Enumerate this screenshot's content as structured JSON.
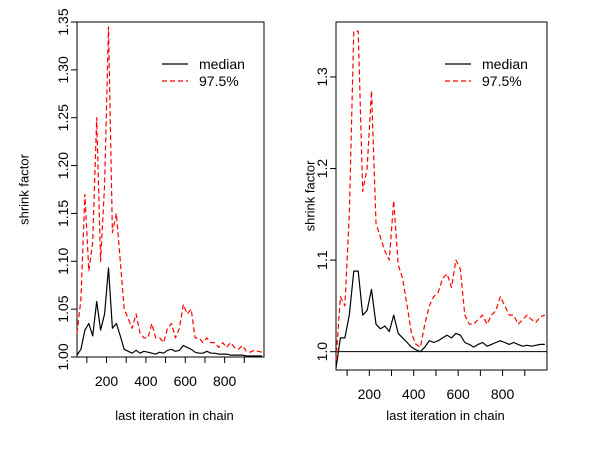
{
  "chart_data": [
    {
      "type": "line",
      "title": "",
      "xlabel": "last iteration in chain",
      "ylabel": "shrink factor",
      "xlim": [
        50,
        1000
      ],
      "ylim": [
        1.0,
        1.35
      ],
      "xticks": [
        "200",
        "400",
        "600",
        "800"
      ],
      "yticks": [
        "1.00",
        "1.05",
        "1.10",
        "1.15",
        "1.20",
        "1.25",
        "1.30",
        "1.35"
      ],
      "reference_line": 1.0,
      "legend": {
        "position": "top-right",
        "entries": [
          "median",
          "97.5%"
        ]
      },
      "colors": {
        "median": "#000000",
        "upper": "#ff0000"
      },
      "series": [
        {
          "name": "median",
          "x": [
            50,
            70,
            90,
            110,
            130,
            150,
            170,
            190,
            210,
            230,
            250,
            270,
            290,
            310,
            330,
            350,
            370,
            390,
            410,
            430,
            450,
            470,
            490,
            510,
            530,
            550,
            570,
            590,
            610,
            630,
            650,
            670,
            690,
            710,
            730,
            750,
            770,
            790,
            810,
            830,
            850,
            870,
            890,
            910,
            930,
            950,
            970,
            990
          ],
          "values": [
            1.002,
            1.008,
            1.028,
            1.035,
            1.022,
            1.058,
            1.028,
            1.045,
            1.093,
            1.03,
            1.035,
            1.022,
            1.008,
            1.006,
            1.004,
            1.007,
            1.004,
            1.006,
            1.005,
            1.004,
            1.003,
            1.005,
            1.004,
            1.007,
            1.008,
            1.006,
            1.007,
            1.012,
            1.01,
            1.008,
            1.005,
            1.004,
            1.004,
            1.006,
            1.004,
            1.004,
            1.003,
            1.003,
            1.003,
            1.002,
            1.002,
            1.002,
            1.002,
            1.001,
            1.001,
            1.001,
            1.001,
            1.001
          ]
        },
        {
          "name": "97.5%",
          "x": [
            50,
            70,
            90,
            110,
            130,
            150,
            170,
            190,
            210,
            230,
            250,
            270,
            290,
            310,
            330,
            350,
            370,
            390,
            410,
            430,
            450,
            470,
            490,
            510,
            530,
            550,
            570,
            590,
            610,
            630,
            650,
            670,
            690,
            710,
            730,
            750,
            770,
            790,
            810,
            830,
            850,
            870,
            890,
            910,
            930,
            950,
            970,
            990
          ],
          "values": [
            1.025,
            1.06,
            1.17,
            1.09,
            1.12,
            1.25,
            1.1,
            1.18,
            1.345,
            1.13,
            1.15,
            1.1,
            1.05,
            1.04,
            1.03,
            1.045,
            1.025,
            1.02,
            1.02,
            1.035,
            1.02,
            1.02,
            1.015,
            1.03,
            1.035,
            1.02,
            1.03,
            1.055,
            1.045,
            1.05,
            1.02,
            1.02,
            1.015,
            1.02,
            1.015,
            1.015,
            1.01,
            1.015,
            1.01,
            1.015,
            1.01,
            1.008,
            1.012,
            1.006,
            1.005,
            1.007,
            1.006,
            1.005
          ]
        }
      ]
    },
    {
      "type": "line",
      "title": "",
      "xlabel": "last iteration in chain",
      "ylabel": "shrink factor",
      "xlim": [
        50,
        1000
      ],
      "ylim": [
        0.98,
        1.36
      ],
      "xticks": [
        "200",
        "400",
        "600",
        "800"
      ],
      "yticks": [
        "1.0",
        "1.1",
        "1.2",
        "1.3"
      ],
      "reference_line": 1.0,
      "legend": {
        "position": "top-right",
        "entries": [
          "median",
          "97.5%"
        ]
      },
      "colors": {
        "median": "#000000",
        "upper": "#ff0000"
      },
      "series": [
        {
          "name": "median",
          "x": [
            50,
            70,
            90,
            110,
            130,
            150,
            170,
            190,
            210,
            230,
            250,
            270,
            290,
            310,
            330,
            350,
            370,
            390,
            410,
            430,
            450,
            470,
            490,
            510,
            530,
            550,
            570,
            590,
            610,
            630,
            650,
            670,
            690,
            710,
            730,
            750,
            770,
            790,
            810,
            830,
            850,
            870,
            890,
            910,
            930,
            950,
            970,
            990
          ],
          "values": [
            0.982,
            1.015,
            1.015,
            1.04,
            1.088,
            1.088,
            1.04,
            1.045,
            1.068,
            1.03,
            1.025,
            1.028,
            1.022,
            1.04,
            1.02,
            1.015,
            1.01,
            1.005,
            1.002,
            1.0,
            1.005,
            1.012,
            1.01,
            1.012,
            1.015,
            1.018,
            1.015,
            1.02,
            1.018,
            1.01,
            1.008,
            1.005,
            1.008,
            1.01,
            1.006,
            1.008,
            1.01,
            1.012,
            1.01,
            1.008,
            1.01,
            1.008,
            1.006,
            1.007,
            1.006,
            1.007,
            1.008,
            1.008
          ]
        },
        {
          "name": "97.5%",
          "x": [
            50,
            70,
            90,
            110,
            130,
            150,
            170,
            190,
            210,
            230,
            250,
            270,
            290,
            310,
            330,
            350,
            370,
            390,
            410,
            430,
            450,
            470,
            490,
            510,
            530,
            550,
            570,
            590,
            610,
            630,
            650,
            670,
            690,
            710,
            730,
            750,
            770,
            790,
            810,
            830,
            850,
            870,
            890,
            910,
            930,
            950,
            970,
            990
          ],
          "values": [
            0.99,
            1.06,
            1.05,
            1.15,
            1.35,
            1.35,
            1.175,
            1.2,
            1.285,
            1.14,
            1.125,
            1.11,
            1.1,
            1.165,
            1.095,
            1.08,
            1.05,
            1.02,
            1.008,
            1.005,
            1.03,
            1.05,
            1.06,
            1.065,
            1.08,
            1.085,
            1.07,
            1.1,
            1.09,
            1.04,
            1.03,
            1.03,
            1.035,
            1.04,
            1.03,
            1.04,
            1.045,
            1.06,
            1.05,
            1.04,
            1.04,
            1.03,
            1.035,
            1.04,
            1.035,
            1.032,
            1.038,
            1.04
          ]
        }
      ]
    }
  ]
}
